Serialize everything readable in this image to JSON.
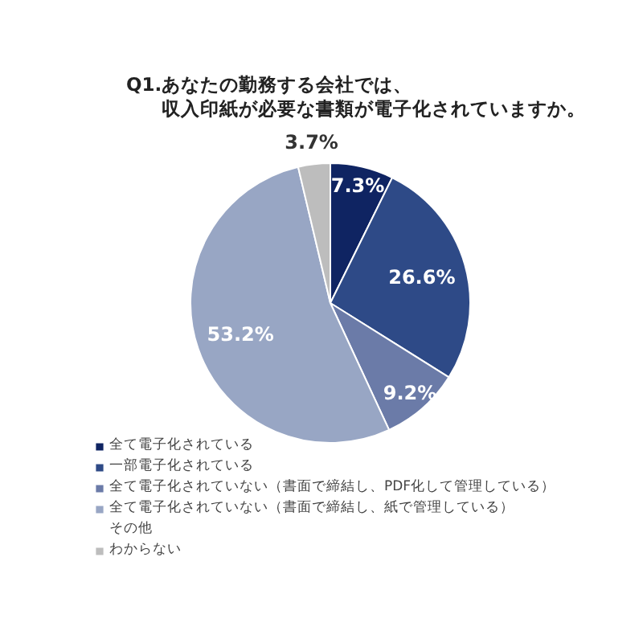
{
  "chart_data": {
    "type": "pie",
    "title": "Q1.あなたの勤務する会社では、収入印紙が必要な書類が電子化されていますか。",
    "categories": [
      "全て電子化されている",
      "一部電子化されている",
      "全て電子化されていない（書面で締結し、PDF化して管理している）",
      "全て電子化されていない（書面で締結し、紙で管理している）",
      "その他",
      "わからない"
    ],
    "values": [
      7.3,
      26.6,
      9.2,
      53.2,
      null,
      3.7
    ],
    "colors": [
      "#0f2462",
      "#2e4a87",
      "#6b7ba8",
      "#98a6c4",
      "#a6a6a6",
      "#bdbdbd"
    ],
    "value_labels": [
      "7.3%",
      "26.6%",
      "9.2%",
      "53.2%",
      null,
      "3.7%"
    ],
    "legend": "bottom"
  }
}
